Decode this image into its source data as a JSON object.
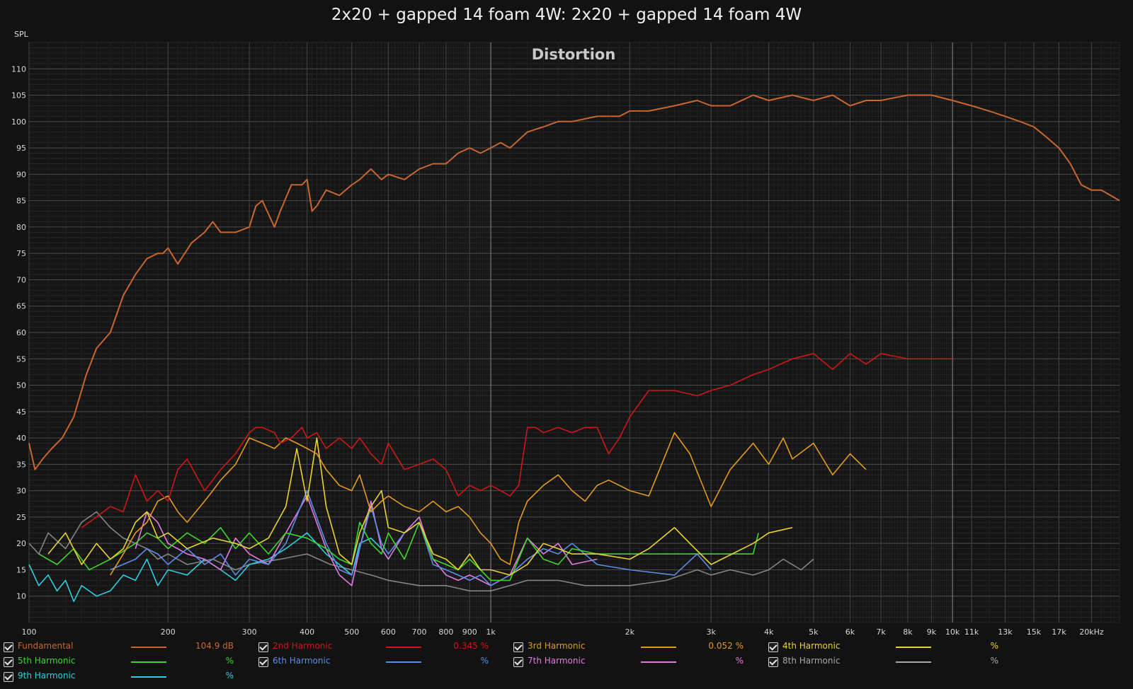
{
  "chart_data": {
    "type": "line",
    "title": "2x20 + gapped 14 foam 4W: 2x20 + gapped 14 foam 4W",
    "subtitle": "Distortion",
    "ylabel": "SPL",
    "xlabel": "",
    "x_scale": "log",
    "xlim": [
      100,
      23000
    ],
    "ylim": [
      5,
      115
    ],
    "grid": true,
    "x_ticks": [
      {
        "v": 100,
        "label": "100"
      },
      {
        "v": 200,
        "label": "200"
      },
      {
        "v": 300,
        "label": "300"
      },
      {
        "v": 400,
        "label": "400"
      },
      {
        "v": 500,
        "label": "500"
      },
      {
        "v": 600,
        "label": "600"
      },
      {
        "v": 700,
        "label": "700"
      },
      {
        "v": 800,
        "label": "800"
      },
      {
        "v": 900,
        "label": "900"
      },
      {
        "v": 1000,
        "label": "1k"
      },
      {
        "v": 2000,
        "label": "2k"
      },
      {
        "v": 3000,
        "label": "3k"
      },
      {
        "v": 4000,
        "label": "4k"
      },
      {
        "v": 5000,
        "label": "5k"
      },
      {
        "v": 6000,
        "label": "6k"
      },
      {
        "v": 7000,
        "label": "7k"
      },
      {
        "v": 8000,
        "label": "8k"
      },
      {
        "v": 9000,
        "label": "9k"
      },
      {
        "v": 10000,
        "label": "10k"
      },
      {
        "v": 11000,
        "label": "11k"
      },
      {
        "v": 13000,
        "label": "13k"
      },
      {
        "v": 15000,
        "label": "15k"
      },
      {
        "v": 17000,
        "label": "17k"
      },
      {
        "v": 20000,
        "label": "20kHz"
      }
    ],
    "y_ticks": [
      10,
      15,
      20,
      25,
      30,
      35,
      40,
      45,
      50,
      55,
      60,
      65,
      70,
      75,
      80,
      85,
      90,
      95,
      100,
      105,
      110
    ],
    "series": [
      {
        "name": "Fundamental",
        "color": "#c8662e",
        "legend_value": "104.9 dB",
        "legend_color": "#c8662e",
        "x": [
          100,
          103,
          107,
          112,
          118,
          125,
          133,
          140,
          150,
          160,
          170,
          180,
          190,
          195,
          200,
          210,
          225,
          240,
          250,
          260,
          280,
          300,
          310,
          320,
          340,
          350,
          370,
          390,
          400,
          410,
          420,
          440,
          470,
          500,
          520,
          550,
          580,
          600,
          650,
          700,
          750,
          800,
          850,
          900,
          950,
          1000,
          1050,
          1100,
          1200,
          1300,
          1400,
          1500,
          1700,
          1900,
          2000,
          2200,
          2500,
          2800,
          3000,
          3300,
          3700,
          4000,
          4500,
          5000,
          5500,
          6000,
          6500,
          7000,
          8000,
          9000,
          10000,
          11000,
          12000,
          13000,
          14000,
          15000,
          16000,
          17000,
          18000,
          19000,
          20000,
          21000,
          22000,
          23000
        ],
        "y": [
          39,
          34,
          36,
          38,
          40,
          44,
          52,
          57,
          60,
          67,
          71,
          74,
          75,
          75,
          76,
          73,
          77,
          79,
          81,
          79,
          79,
          80,
          84,
          85,
          80,
          83,
          88,
          88,
          89,
          83,
          84,
          87,
          86,
          88,
          89,
          91,
          89,
          90,
          89,
          91,
          92,
          92,
          94,
          95,
          94,
          95,
          96,
          95,
          98,
          99,
          100,
          100,
          101,
          101,
          102,
          102,
          103,
          104,
          103,
          103,
          105,
          104,
          105,
          104,
          105,
          103,
          104,
          104,
          105,
          105,
          104,
          103,
          102,
          101,
          100,
          99,
          97,
          95,
          92,
          88,
          87,
          87,
          86,
          85
        ]
      },
      {
        "name": "2nd Harmonic",
        "color": "#cc1818",
        "legend_value": "0.345 %",
        "legend_color": "#cc1818",
        "x": [
          130,
          140,
          150,
          160,
          170,
          180,
          190,
          200,
          210,
          220,
          240,
          250,
          260,
          280,
          300,
          310,
          320,
          340,
          350,
          370,
          390,
          400,
          420,
          440,
          470,
          500,
          520,
          550,
          580,
          600,
          650,
          700,
          750,
          800,
          850,
          900,
          950,
          1000,
          1050,
          1100,
          1150,
          1200,
          1250,
          1300,
          1400,
          1500,
          1600,
          1700,
          1800,
          1900,
          2000,
          2200,
          2500,
          2800,
          3000,
          3300,
          3700,
          4000,
          4500,
          5000,
          5500,
          6000,
          6500,
          7000,
          8000,
          9000,
          10000
        ],
        "y": [
          23,
          25,
          27,
          26,
          33,
          28,
          30,
          28,
          34,
          36,
          30,
          32,
          34,
          37,
          41,
          42,
          42,
          41,
          39,
          40,
          42,
          40,
          41,
          38,
          40,
          38,
          40,
          37,
          35,
          39,
          34,
          35,
          36,
          34,
          29,
          31,
          30,
          31,
          30,
          29,
          31,
          42,
          42,
          41,
          42,
          41,
          42,
          42,
          37,
          40,
          44,
          49,
          49,
          48,
          49,
          50,
          52,
          53,
          55,
          56,
          53,
          56,
          54,
          56,
          55,
          55,
          55
        ]
      },
      {
        "name": "3rd Harmonic",
        "color": "#e39a1e",
        "legend_value": "0.052 %",
        "legend_color": "#e39a1e",
        "x": [
          150,
          160,
          170,
          180,
          190,
          200,
          210,
          220,
          240,
          250,
          260,
          280,
          300,
          320,
          340,
          360,
          380,
          400,
          420,
          440,
          470,
          500,
          520,
          550,
          580,
          600,
          650,
          700,
          750,
          800,
          850,
          900,
          950,
          1000,
          1050,
          1100,
          1150,
          1200,
          1300,
          1400,
          1500,
          1600,
          1700,
          1800,
          1900,
          2000,
          2200,
          2500,
          2700,
          3000,
          3300,
          3700,
          4000,
          4300,
          4500,
          5000,
          5500,
          6000,
          6500
        ],
        "y": [
          14,
          18,
          22,
          24,
          28,
          29,
          26,
          24,
          28,
          30,
          32,
          35,
          40,
          39,
          38,
          40,
          39,
          38,
          37,
          34,
          31,
          30,
          33,
          26,
          28,
          29,
          27,
          26,
          28,
          26,
          27,
          25,
          22,
          20,
          17,
          16,
          24,
          28,
          31,
          33,
          30,
          28,
          31,
          32,
          31,
          30,
          29,
          41,
          37,
          27,
          34,
          39,
          35,
          40,
          36,
          39,
          33,
          37,
          34
        ]
      },
      {
        "name": "4th Harmonic",
        "color": "#ead232",
        "legend_value": "",
        "legend_color": "#ead232",
        "x": [
          110,
          120,
          130,
          140,
          150,
          160,
          170,
          180,
          190,
          200,
          220,
          250,
          280,
          300,
          330,
          360,
          380,
          400,
          420,
          440,
          470,
          500,
          520,
          550,
          580,
          600,
          650,
          700,
          750,
          800,
          850,
          900,
          950,
          1000,
          1100,
          1200,
          1300,
          1400,
          1500,
          1700,
          2000,
          2200,
          2500,
          2700,
          3000,
          3700,
          4000,
          4500
        ],
        "y": [
          18,
          22,
          16,
          20,
          17,
          19,
          24,
          26,
          21,
          22,
          19,
          21,
          20,
          19,
          21,
          27,
          38,
          28,
          40,
          27,
          18,
          16,
          22,
          27,
          30,
          23,
          22,
          24,
          18,
          17,
          15,
          18,
          15,
          15,
          14,
          16,
          20,
          19,
          18,
          18,
          17,
          19,
          23,
          20,
          16,
          20,
          22,
          23
        ]
      },
      {
        "name": "5th Harmonic",
        "color": "#3ed62e",
        "legend_value": "",
        "legend_color": "#3ed62e",
        "x": [
          105,
          115,
          125,
          135,
          150,
          170,
          180,
          190,
          200,
          220,
          240,
          260,
          280,
          300,
          330,
          360,
          400,
          440,
          470,
          500,
          520,
          550,
          580,
          600,
          650,
          700,
          750,
          800,
          850,
          900,
          950,
          1000,
          1100,
          1200,
          1300,
          1400,
          1500,
          1700,
          3700,
          3800
        ],
        "y": [
          18,
          16,
          19,
          15,
          17,
          20,
          22,
          21,
          19,
          22,
          20,
          23,
          19,
          22,
          18,
          22,
          21,
          19,
          17,
          16,
          24,
          20,
          18,
          22,
          17,
          24,
          17,
          16,
          15,
          17,
          15,
          13,
          13,
          21,
          17,
          16,
          19,
          18,
          18,
          22
        ]
      },
      {
        "name": "6th Harmonic",
        "color": "#5b8ee6",
        "legend_value": "",
        "legend_color": "#5b8ee6",
        "x": [
          150,
          170,
          180,
          190,
          200,
          220,
          240,
          260,
          280,
          300,
          330,
          360,
          400,
          440,
          470,
          500,
          520,
          550,
          580,
          600,
          650,
          700,
          750,
          800,
          850,
          900,
          950,
          1000,
          1100,
          1200,
          1300,
          1400,
          1500,
          1700,
          2000,
          2500,
          2800,
          3000
        ],
        "y": [
          15,
          17,
          19,
          18,
          16,
          19,
          16,
          18,
          14,
          17,
          16,
          20,
          30,
          20,
          15,
          14,
          19,
          27,
          20,
          18,
          22,
          24,
          16,
          15,
          14,
          13,
          14,
          12,
          14,
          17,
          19,
          18,
          20,
          16,
          15,
          14,
          18,
          15
        ]
      },
      {
        "name": "7th Harmonic",
        "color": "#e47ae4",
        "legend_value": "",
        "legend_color": "#e47ae4",
        "x": [
          170,
          180,
          190,
          200,
          220,
          240,
          260,
          280,
          300,
          330,
          360,
          400,
          440,
          470,
          500,
          520,
          550,
          580,
          600,
          650,
          700,
          750,
          800,
          850,
          900,
          950,
          1000,
          1100,
          1200,
          1300,
          1400,
          1500,
          1700
        ],
        "y": [
          19,
          26,
          24,
          20,
          18,
          17,
          15,
          21,
          18,
          16,
          22,
          29,
          19,
          14,
          12,
          19,
          28,
          19,
          17,
          22,
          25,
          17,
          14,
          13,
          14,
          13,
          12,
          14,
          21,
          18,
          20,
          16,
          17
        ]
      },
      {
        "name": "8th Harmonic",
        "color": "#a8a8a8",
        "legend_value": "",
        "legend_color": "#a8a8a8",
        "x": [
          100,
          105,
          110,
          120,
          130,
          140,
          150,
          160,
          170,
          180,
          190,
          200,
          220,
          250,
          280,
          300,
          350,
          400,
          450,
          500,
          550,
          600,
          700,
          800,
          900,
          1000,
          1100,
          1200,
          1400,
          1600,
          1800,
          2000,
          2400,
          2800,
          3000,
          3300,
          3700,
          4000,
          4300,
          4700,
          5000
        ],
        "y": [
          20,
          18,
          22,
          19,
          24,
          26,
          23,
          21,
          20,
          19,
          17,
          18,
          16,
          17,
          15,
          16,
          17,
          18,
          16,
          15,
          14,
          13,
          12,
          12,
          11,
          11,
          12,
          13,
          13,
          12,
          12,
          12,
          13,
          15,
          14,
          15,
          14,
          15,
          17,
          15,
          17
        ]
      },
      {
        "name": "9th Harmonic",
        "color": "#2fcfe0",
        "legend_value": "",
        "legend_color": "#2fcfe0",
        "x": [
          100,
          105,
          110,
          115,
          120,
          125,
          130,
          140,
          150,
          160,
          170,
          180,
          190,
          200,
          220,
          240,
          260,
          280,
          300,
          330,
          360,
          400,
          440,
          470,
          500,
          520,
          550,
          580,
          600
        ],
        "y": [
          16,
          12,
          14,
          11,
          13,
          9,
          12,
          10,
          11,
          14,
          13,
          17,
          12,
          15,
          14,
          17,
          15,
          13,
          16,
          17,
          19,
          22,
          18,
          16,
          14,
          20,
          21,
          19,
          17
        ]
      }
    ]
  },
  "legend_unit": "%"
}
